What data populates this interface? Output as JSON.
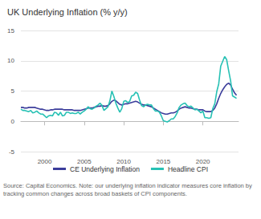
{
  "chart_data": {
    "type": "line",
    "title": "UK Underlying Inflation (% y/y)",
    "source": "Source: Capital Economics. Note: our underlying inflation indicator measures core inflation by tracking common changes across broad baskets of CPI components.",
    "x": [
      1997,
      1997.25,
      1997.5,
      1997.75,
      1998,
      1998.25,
      1998.5,
      1998.75,
      1999,
      1999.25,
      1999.5,
      1999.75,
      2000,
      2000.25,
      2000.5,
      2000.75,
      2001,
      2001.25,
      2001.5,
      2001.75,
      2002,
      2002.25,
      2002.5,
      2002.75,
      2003,
      2003.25,
      2003.5,
      2003.75,
      2004,
      2004.25,
      2004.5,
      2004.75,
      2005,
      2005.25,
      2005.5,
      2005.75,
      2006,
      2006.25,
      2006.5,
      2006.75,
      2007,
      2007.25,
      2007.5,
      2007.75,
      2008,
      2008.25,
      2008.5,
      2008.75,
      2009,
      2009.25,
      2009.5,
      2009.75,
      2010,
      2010.25,
      2010.5,
      2010.75,
      2011,
      2011.25,
      2011.5,
      2011.75,
      2012,
      2012.25,
      2012.5,
      2012.75,
      2013,
      2013.25,
      2013.5,
      2013.75,
      2014,
      2014.25,
      2014.5,
      2014.75,
      2015,
      2015.25,
      2015.5,
      2015.75,
      2016,
      2016.25,
      2016.5,
      2016.75,
      2017,
      2017.25,
      2017.5,
      2017.75,
      2018,
      2018.25,
      2018.5,
      2018.75,
      2019,
      2019.25,
      2019.5,
      2019.75,
      2020,
      2020.25,
      2020.5,
      2020.75,
      2021,
      2021.25,
      2021.5,
      2021.75,
      2022,
      2022.25,
      2022.5,
      2022.75,
      2023,
      2023.25,
      2023.5,
      2023.75,
      2024,
      2024.25
    ],
    "series": [
      {
        "name": "CE Underlying Inflation",
        "color": "#3b3d9b",
        "values": [
          2.3,
          2.3,
          2.2,
          2.2,
          2.3,
          2.3,
          2.3,
          2.3,
          2.2,
          2.1,
          2.0,
          2.0,
          1.9,
          1.8,
          1.8,
          1.9,
          1.9,
          2.0,
          2.0,
          2.0,
          2.0,
          2.0,
          1.9,
          1.9,
          1.9,
          1.9,
          1.9,
          1.8,
          1.8,
          1.8,
          1.8,
          1.9,
          2.0,
          2.1,
          2.2,
          2.2,
          2.2,
          2.3,
          2.4,
          2.5,
          2.5,
          2.6,
          2.5,
          2.5,
          2.6,
          2.9,
          3.3,
          3.5,
          3.4,
          3.1,
          2.8,
          2.7,
          2.8,
          2.9,
          2.9,
          3.0,
          3.1,
          3.2,
          3.3,
          3.2,
          3.0,
          2.8,
          2.7,
          2.7,
          2.6,
          2.5,
          2.4,
          2.2,
          2.0,
          1.8,
          1.6,
          1.4,
          1.3,
          1.2,
          1.2,
          1.3,
          1.4,
          1.4,
          1.5,
          1.7,
          2.0,
          2.2,
          2.3,
          2.4,
          2.3,
          2.2,
          2.2,
          2.1,
          2.0,
          2.0,
          1.9,
          1.9,
          1.9,
          1.7,
          1.6,
          1.6,
          1.6,
          1.8,
          2.2,
          2.9,
          3.8,
          4.6,
          5.2,
          5.7,
          6.1,
          6.3,
          6.0,
          5.3,
          4.7,
          4.3
        ]
      },
      {
        "name": "Headline CPI",
        "color": "#27c1b4",
        "values": [
          2.0,
          1.8,
          1.8,
          1.7,
          1.6,
          1.8,
          1.4,
          1.5,
          1.7,
          1.4,
          1.2,
          1.2,
          0.9,
          0.6,
          0.9,
          1.0,
          0.9,
          1.5,
          1.4,
          1.0,
          1.5,
          0.9,
          1.0,
          1.5,
          1.5,
          1.3,
          1.4,
          1.3,
          1.3,
          1.5,
          1.2,
          1.5,
          1.7,
          2.0,
          2.4,
          2.1,
          2.0,
          2.2,
          2.5,
          2.7,
          3.0,
          2.6,
          1.8,
          2.1,
          2.4,
          3.4,
          5.0,
          4.1,
          3.0,
          2.2,
          1.5,
          2.1,
          3.3,
          3.4,
          3.1,
          3.3,
          4.2,
          4.3,
          4.8,
          4.6,
          3.5,
          2.6,
          2.4,
          2.7,
          2.8,
          2.7,
          2.7,
          2.1,
          1.7,
          1.7,
          1.5,
          0.9,
          0.1,
          0.0,
          -0.1,
          0.1,
          0.4,
          0.4,
          0.8,
          1.4,
          2.3,
          2.7,
          2.9,
          3.0,
          2.6,
          2.4,
          2.5,
          2.2,
          1.9,
          2.0,
          1.7,
          1.4,
          1.7,
          0.6,
          0.6,
          0.5,
          0.6,
          2.1,
          2.9,
          4.9,
          6.2,
          9.1,
          9.9,
          10.7,
          10.2,
          8.4,
          6.7,
          4.2,
          4.0,
          3.8
        ]
      }
    ],
    "xlim": [
      1997,
      2024.5
    ],
    "xticks": [
      2000,
      2005,
      2010,
      2015,
      2020
    ],
    "ylim": [
      -5,
      15
    ],
    "yticks": [
      -5,
      0,
      5,
      10,
      15
    ],
    "grid": true,
    "legend": "bottom"
  }
}
